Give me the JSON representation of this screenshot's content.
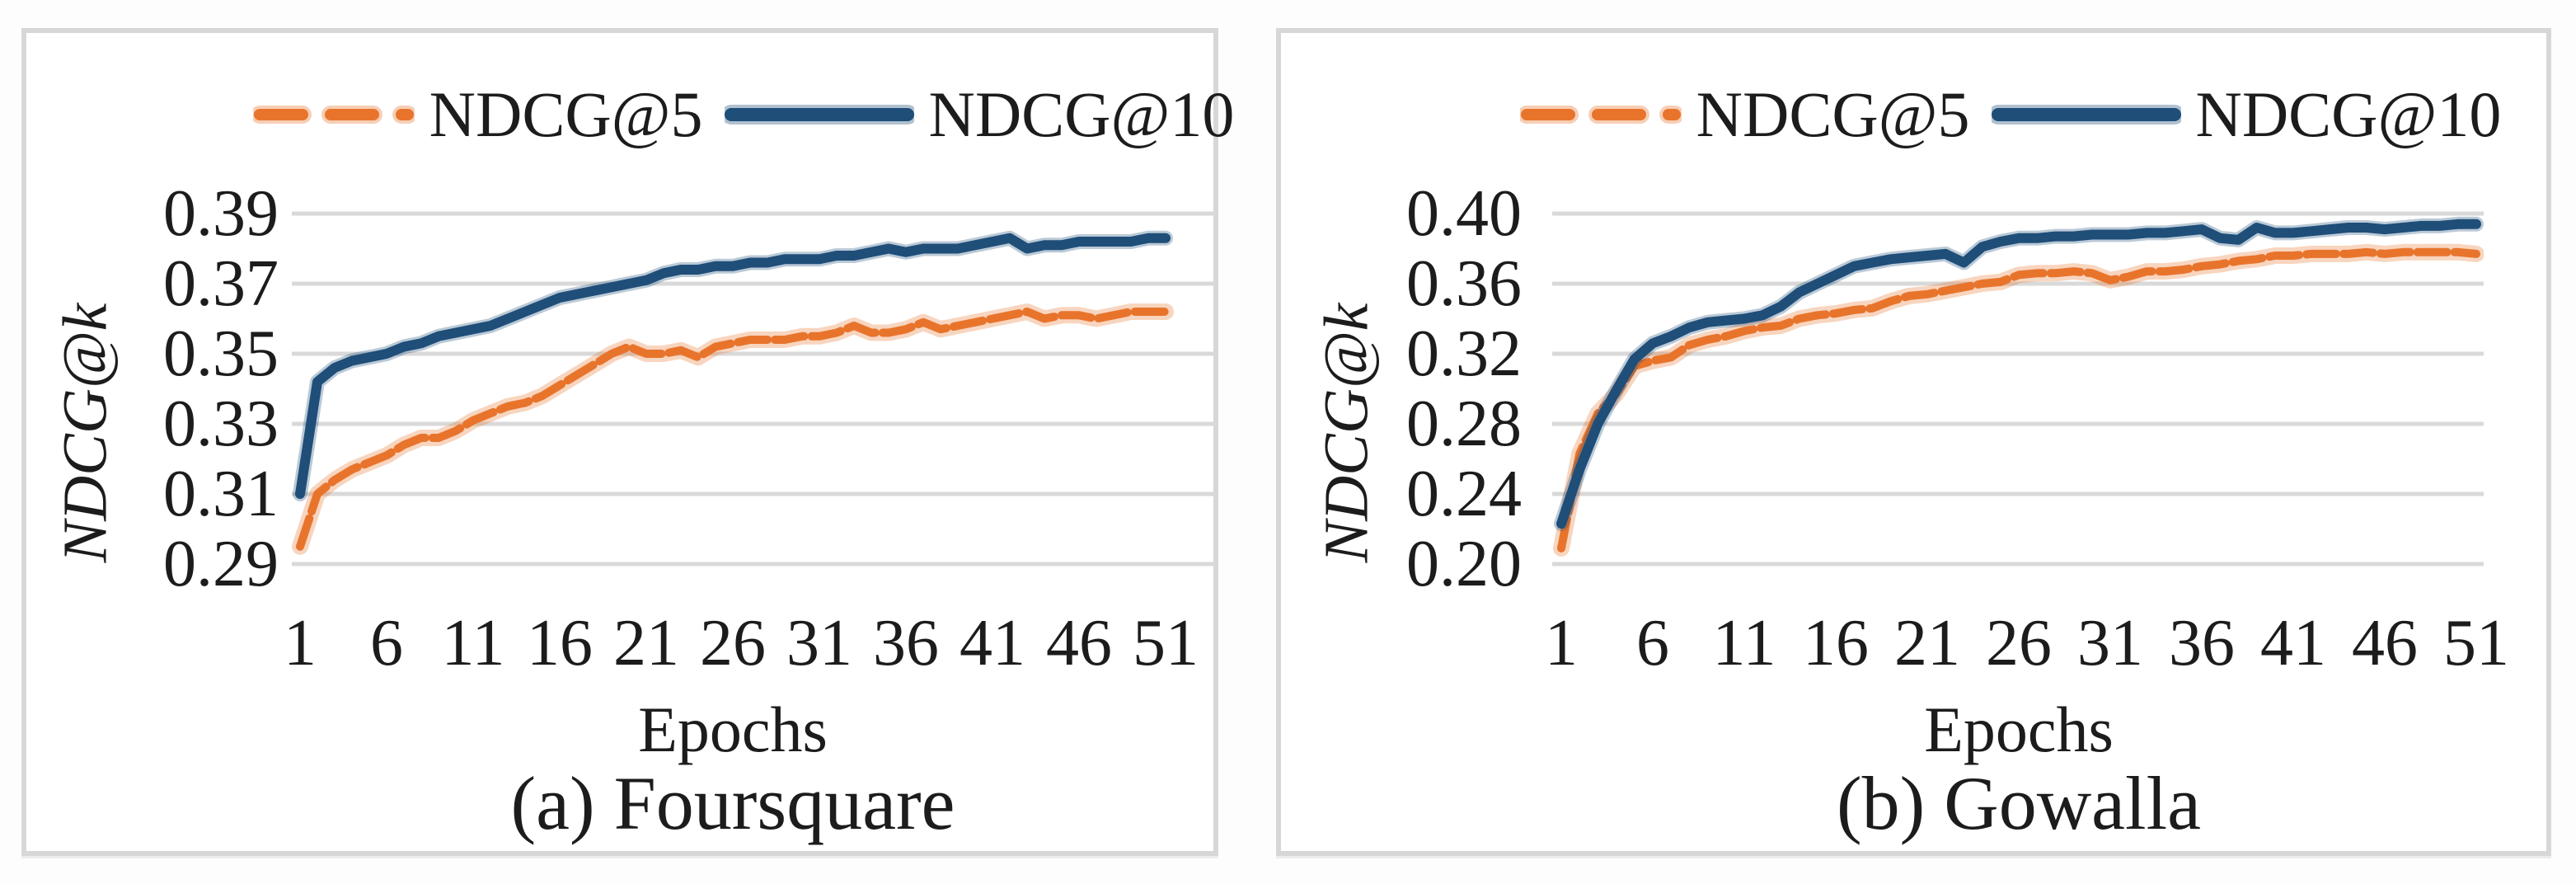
{
  "figure": {
    "panels": [
      {
        "id": "a",
        "caption": "(a) Foursquare",
        "x_axis_label": "Epochs",
        "y_axis_label": "NDCG@k",
        "x_tick_labels": [
          "1",
          "6",
          "11",
          "16",
          "21",
          "26",
          "31",
          "36",
          "41",
          "46",
          "51"
        ],
        "y_tick_labels": [
          "0.39",
          "0.37",
          "0.35",
          "0.33",
          "0.31",
          "0.29"
        ],
        "legend": [
          {
            "label": "NDCG@5",
            "color": "#E8742C",
            "style": "dashed"
          },
          {
            "label": "NDCG@10",
            "color": "#1F4E79",
            "style": "solid"
          }
        ]
      },
      {
        "id": "b",
        "caption": "(b) Gowalla",
        "x_axis_label": "Epochs",
        "y_axis_label": "NDCG@k",
        "x_tick_labels": [
          "1",
          "6",
          "11",
          "16",
          "21",
          "26",
          "31",
          "36",
          "41",
          "46",
          "51"
        ],
        "y_tick_labels": [
          "0.40",
          "0.36",
          "0.32",
          "0.28",
          "0.24",
          "0.20"
        ],
        "legend": [
          {
            "label": "NDCG@5",
            "color": "#E8742C",
            "style": "dashed"
          },
          {
            "label": "NDCG@10",
            "color": "#1F4E79",
            "style": "solid"
          }
        ]
      }
    ],
    "colors": {
      "ndcg5_orange": "#E8742C",
      "ndcg10_blue": "#1F4E79",
      "gridline_gray": "#D9D9D9",
      "text_black": "#1C1C1C"
    }
  },
  "chart_data": [
    {
      "type": "line",
      "title": "(a) Foursquare",
      "xlabel": "Epochs",
      "ylabel": "NDCG@k",
      "ylim": [
        0.29,
        0.39
      ],
      "ytick_step": 0.02,
      "grid": "horizontal",
      "legend_position": "top",
      "x": [
        1,
        2,
        3,
        4,
        5,
        6,
        7,
        8,
        9,
        10,
        11,
        12,
        13,
        14,
        15,
        16,
        17,
        18,
        19,
        20,
        21,
        22,
        23,
        24,
        25,
        26,
        27,
        28,
        29,
        30,
        31,
        32,
        33,
        34,
        35,
        36,
        37,
        38,
        39,
        40,
        41,
        42,
        43,
        44,
        45,
        46,
        47,
        48,
        49,
        50,
        51
      ],
      "xticks": [
        1,
        6,
        11,
        16,
        21,
        26,
        31,
        36,
        41,
        46,
        51
      ],
      "series": [
        {
          "name": "NDCG@5",
          "values": [
            0.295,
            0.31,
            0.314,
            0.317,
            0.319,
            0.321,
            0.324,
            0.326,
            0.326,
            0.328,
            0.331,
            0.333,
            0.335,
            0.336,
            0.338,
            0.341,
            0.344,
            0.347,
            0.35,
            0.352,
            0.35,
            0.35,
            0.351,
            0.349,
            0.352,
            0.353,
            0.354,
            0.354,
            0.354,
            0.355,
            0.355,
            0.356,
            0.358,
            0.356,
            0.356,
            0.357,
            0.359,
            0.357,
            0.358,
            0.359,
            0.36,
            0.361,
            0.362,
            0.36,
            0.361,
            0.361,
            0.36,
            0.361,
            0.362,
            0.362,
            0.362
          ]
        },
        {
          "name": "NDCG@10",
          "values": [
            0.31,
            0.342,
            0.346,
            0.348,
            0.349,
            0.35,
            0.352,
            0.353,
            0.355,
            0.356,
            0.357,
            0.358,
            0.36,
            0.362,
            0.364,
            0.366,
            0.367,
            0.368,
            0.369,
            0.37,
            0.371,
            0.373,
            0.374,
            0.374,
            0.375,
            0.375,
            0.376,
            0.376,
            0.377,
            0.377,
            0.377,
            0.378,
            0.378,
            0.379,
            0.38,
            0.379,
            0.38,
            0.38,
            0.38,
            0.381,
            0.382,
            0.383,
            0.38,
            0.381,
            0.381,
            0.382,
            0.382,
            0.382,
            0.382,
            0.383,
            0.383
          ]
        }
      ]
    },
    {
      "type": "line",
      "title": "(b) Gowalla",
      "xlabel": "Epochs",
      "ylabel": "NDCG@k",
      "ylim": [
        0.2,
        0.4
      ],
      "ytick_step": 0.04,
      "grid": "horizontal",
      "legend_position": "top",
      "x": [
        1,
        2,
        3,
        4,
        5,
        6,
        7,
        8,
        9,
        10,
        11,
        12,
        13,
        14,
        15,
        16,
        17,
        18,
        19,
        20,
        21,
        22,
        23,
        24,
        25,
        26,
        27,
        28,
        29,
        30,
        31,
        32,
        33,
        34,
        35,
        36,
        37,
        38,
        39,
        40,
        41,
        42,
        43,
        44,
        45,
        46,
        47,
        48,
        49,
        50,
        51
      ],
      "xticks": [
        1,
        6,
        11,
        16,
        21,
        26,
        31,
        36,
        41,
        46,
        51
      ],
      "series": [
        {
          "name": "NDCG@5",
          "values": [
            0.209,
            0.263,
            0.286,
            0.297,
            0.313,
            0.316,
            0.318,
            0.325,
            0.328,
            0.33,
            0.333,
            0.335,
            0.336,
            0.34,
            0.342,
            0.343,
            0.345,
            0.346,
            0.35,
            0.353,
            0.354,
            0.356,
            0.358,
            0.36,
            0.361,
            0.365,
            0.366,
            0.366,
            0.367,
            0.366,
            0.362,
            0.364,
            0.367,
            0.367,
            0.368,
            0.37,
            0.371,
            0.373,
            0.374,
            0.376,
            0.376,
            0.377,
            0.377,
            0.377,
            0.378,
            0.377,
            0.378,
            0.378,
            0.378,
            0.378,
            0.377
          ]
        },
        {
          "name": "NDCG@10",
          "values": [
            0.223,
            0.254,
            0.28,
            0.299,
            0.317,
            0.326,
            0.33,
            0.335,
            0.338,
            0.339,
            0.34,
            0.342,
            0.347,
            0.355,
            0.36,
            0.365,
            0.37,
            0.372,
            0.374,
            0.375,
            0.376,
            0.377,
            0.372,
            0.381,
            0.384,
            0.386,
            0.386,
            0.387,
            0.387,
            0.388,
            0.388,
            0.388,
            0.389,
            0.389,
            0.39,
            0.391,
            0.386,
            0.385,
            0.392,
            0.389,
            0.389,
            0.39,
            0.391,
            0.392,
            0.392,
            0.391,
            0.392,
            0.393,
            0.393,
            0.394,
            0.394
          ]
        }
      ]
    }
  ]
}
